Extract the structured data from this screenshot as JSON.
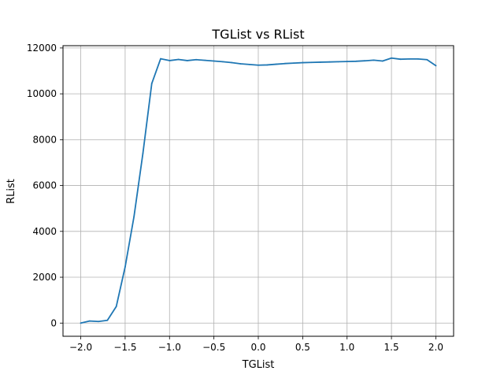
{
  "chart_data": {
    "type": "line",
    "title": "TGList vs RList",
    "xlabel": "TGList",
    "ylabel": "RList",
    "xlim": [
      -2.2,
      2.2
    ],
    "ylim": [
      -575,
      12100
    ],
    "grid": true,
    "xticks": [
      -2.0,
      -1.5,
      -1.0,
      -0.5,
      0.0,
      0.5,
      1.0,
      1.5,
      2.0
    ],
    "xtick_labels": [
      "−2.0",
      "−1.5",
      "−1.0",
      "−0.5",
      "0.0",
      "0.5",
      "1.0",
      "1.5",
      "2.0"
    ],
    "yticks": [
      0,
      2000,
      4000,
      6000,
      8000,
      10000,
      12000
    ],
    "ytick_labels": [
      "0",
      "2000",
      "4000",
      "6000",
      "8000",
      "10000",
      "12000"
    ],
    "series": [
      {
        "color": "#1f77b4",
        "x": [
          -2.0,
          -1.9,
          -1.8,
          -1.7,
          -1.6,
          -1.5,
          -1.4,
          -1.3,
          -1.2,
          -1.1,
          -1.0,
          -0.9,
          -0.8,
          -0.7,
          -0.6,
          -0.5,
          -0.4,
          -0.3,
          -0.2,
          -0.1,
          0.0,
          0.1,
          0.2,
          0.3,
          0.4,
          0.5,
          0.6,
          0.7,
          0.8,
          0.9,
          1.0,
          1.1,
          1.2,
          1.3,
          1.4,
          1.5,
          1.6,
          1.7,
          1.8,
          1.9,
          2.0
        ],
        "y": [
          0,
          90,
          70,
          120,
          720,
          2450,
          4650,
          7400,
          10450,
          11530,
          11450,
          11500,
          11450,
          11490,
          11460,
          11430,
          11400,
          11360,
          11310,
          11280,
          11250,
          11260,
          11290,
          11320,
          11340,
          11360,
          11370,
          11380,
          11390,
          11400,
          11410,
          11420,
          11440,
          11470,
          11430,
          11560,
          11510,
          11520,
          11520,
          11490,
          11230
        ]
      }
    ]
  }
}
